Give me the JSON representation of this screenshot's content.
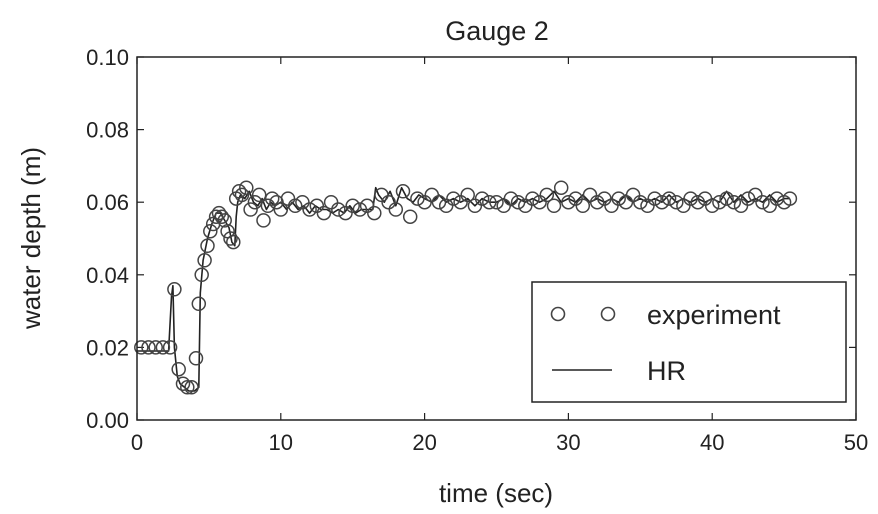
{
  "chart_data": {
    "type": "scatter",
    "title": "Gauge 2",
    "xlabel": "time (sec)",
    "ylabel": "water depth (m)",
    "xlim": [
      0,
      50
    ],
    "ylim": [
      0,
      0.1
    ],
    "xticks": [
      "0",
      "10",
      "20",
      "30",
      "40",
      "50"
    ],
    "yticks": [
      "0.00",
      "0.02",
      "0.04",
      "0.06",
      "0.08",
      "0.10"
    ],
    "grid": false,
    "legend_position": "lower-right",
    "legend": [
      "experiment",
      "HR"
    ],
    "colors": {
      "experiment": "#444444",
      "HR": "#222222"
    },
    "series": [
      {
        "name": "experiment",
        "style": "open-circle",
        "x": [
          0.3,
          0.8,
          1.3,
          1.8,
          2.3,
          2.6,
          2.9,
          3.2,
          3.5,
          3.8,
          4.1,
          4.3,
          4.5,
          4.7,
          4.9,
          5.1,
          5.3,
          5.5,
          5.7,
          5.9,
          6.1,
          6.3,
          6.5,
          6.7,
          6.9,
          7.1,
          7.3,
          7.6,
          7.9,
          8.2,
          8.5,
          8.8,
          9.1,
          9.4,
          9.7,
          10.0,
          10.5,
          11.0,
          11.5,
          12.0,
          12.5,
          13.0,
          13.5,
          14.0,
          14.5,
          15.0,
          15.5,
          16.0,
          16.5,
          17.0,
          17.5,
          18.0,
          18.5,
          19.0,
          19.5,
          20.0,
          20.5,
          21.0,
          21.5,
          22.0,
          22.5,
          23.0,
          23.5,
          24.0,
          24.5,
          25.0,
          25.5,
          26.0,
          26.5,
          27.0,
          27.5,
          28.0,
          28.5,
          29.0,
          29.5,
          30.0,
          30.5,
          31.0,
          31.5,
          32.0,
          32.5,
          33.0,
          33.5,
          34.0,
          34.5,
          35.0,
          35.5,
          36.0,
          36.5,
          37.0,
          37.5,
          38.0,
          38.5,
          39.0,
          39.5,
          40.0,
          40.5,
          41.0,
          41.5,
          42.0,
          42.5,
          43.0,
          43.5,
          44.0,
          44.5,
          45.0,
          45.4
        ],
        "y": [
          0.02,
          0.02,
          0.02,
          0.02,
          0.02,
          0.036,
          0.014,
          0.01,
          0.009,
          0.009,
          0.017,
          0.032,
          0.04,
          0.044,
          0.048,
          0.052,
          0.054,
          0.056,
          0.057,
          0.056,
          0.055,
          0.052,
          0.05,
          0.049,
          0.061,
          0.063,
          0.062,
          0.064,
          0.058,
          0.06,
          0.062,
          0.055,
          0.059,
          0.061,
          0.06,
          0.058,
          0.061,
          0.059,
          0.06,
          0.058,
          0.059,
          0.057,
          0.06,
          0.058,
          0.057,
          0.059,
          0.058,
          0.059,
          0.057,
          0.062,
          0.06,
          0.058,
          0.063,
          0.056,
          0.061,
          0.06,
          0.062,
          0.06,
          0.059,
          0.061,
          0.06,
          0.062,
          0.059,
          0.061,
          0.06,
          0.06,
          0.059,
          0.061,
          0.06,
          0.059,
          0.061,
          0.06,
          0.062,
          0.059,
          0.064,
          0.06,
          0.061,
          0.059,
          0.062,
          0.06,
          0.061,
          0.059,
          0.061,
          0.06,
          0.062,
          0.06,
          0.059,
          0.061,
          0.06,
          0.061,
          0.06,
          0.059,
          0.061,
          0.06,
          0.061,
          0.059,
          0.06,
          0.061,
          0.06,
          0.059,
          0.061,
          0.062,
          0.06,
          0.059,
          0.061,
          0.06,
          0.061
        ]
      },
      {
        "name": "HR",
        "style": "line",
        "x": [
          0,
          0.8,
          1.6,
          2.2,
          2.4,
          2.5,
          2.6,
          2.8,
          3.0,
          3.3,
          3.6,
          4.0,
          4.3,
          4.4,
          4.6,
          4.9,
          5.2,
          5.5,
          5.8,
          6.1,
          6.4,
          6.6,
          6.8,
          6.9,
          7.0,
          7.2,
          7.5,
          7.8,
          8.1,
          8.4,
          8.7,
          9.0,
          9.3,
          9.6,
          10.0,
          10.4,
          10.8,
          11.2,
          11.6,
          12.0,
          12.4,
          12.8,
          13.2,
          13.6,
          14.0,
          14.4,
          14.8,
          15.2,
          15.6,
          16.0,
          16.4,
          16.6,
          16.8,
          17.2,
          17.6,
          18.0,
          18.4,
          18.8,
          19.2,
          19.6,
          20.0,
          20.5,
          21.0,
          21.5,
          22.0,
          22.5,
          23.0,
          23.5,
          24.0,
          24.5,
          25.0,
          25.5,
          26.0,
          26.5,
          27.0,
          27.5,
          28.0,
          28.5,
          29.0,
          29.5,
          30.0,
          30.5,
          31.0,
          31.5,
          32.0,
          32.5,
          33.0,
          33.5,
          34.0,
          34.5,
          35.0,
          35.5,
          36.0,
          36.5,
          37.0,
          37.5,
          38.0,
          38.5,
          39.0,
          39.5,
          40.0,
          40.5,
          41.0,
          41.5,
          42.0,
          42.5,
          43.0,
          43.5,
          44.0,
          44.5,
          45.0,
          45.4
        ],
        "y": [
          0.019,
          0.019,
          0.019,
          0.019,
          0.034,
          0.037,
          0.02,
          0.012,
          0.01,
          0.009,
          0.008,
          0.008,
          0.009,
          0.035,
          0.044,
          0.05,
          0.054,
          0.057,
          0.057,
          0.055,
          0.053,
          0.049,
          0.048,
          0.056,
          0.06,
          0.062,
          0.061,
          0.063,
          0.06,
          0.059,
          0.061,
          0.058,
          0.06,
          0.059,
          0.06,
          0.058,
          0.06,
          0.058,
          0.059,
          0.057,
          0.059,
          0.058,
          0.058,
          0.057,
          0.058,
          0.057,
          0.059,
          0.057,
          0.058,
          0.058,
          0.058,
          0.064,
          0.062,
          0.06,
          0.063,
          0.059,
          0.064,
          0.061,
          0.06,
          0.062,
          0.061,
          0.06,
          0.062,
          0.06,
          0.061,
          0.06,
          0.061,
          0.059,
          0.061,
          0.06,
          0.06,
          0.061,
          0.059,
          0.061,
          0.06,
          0.061,
          0.06,
          0.061,
          0.063,
          0.06,
          0.061,
          0.06,
          0.062,
          0.06,
          0.061,
          0.06,
          0.061,
          0.06,
          0.062,
          0.06,
          0.061,
          0.06,
          0.061,
          0.06,
          0.062,
          0.06,
          0.061,
          0.06,
          0.061,
          0.06,
          0.061,
          0.06,
          0.063,
          0.06,
          0.062,
          0.06,
          0.061,
          0.06,
          0.062,
          0.06,
          0.061,
          0.061
        ]
      }
    ]
  }
}
